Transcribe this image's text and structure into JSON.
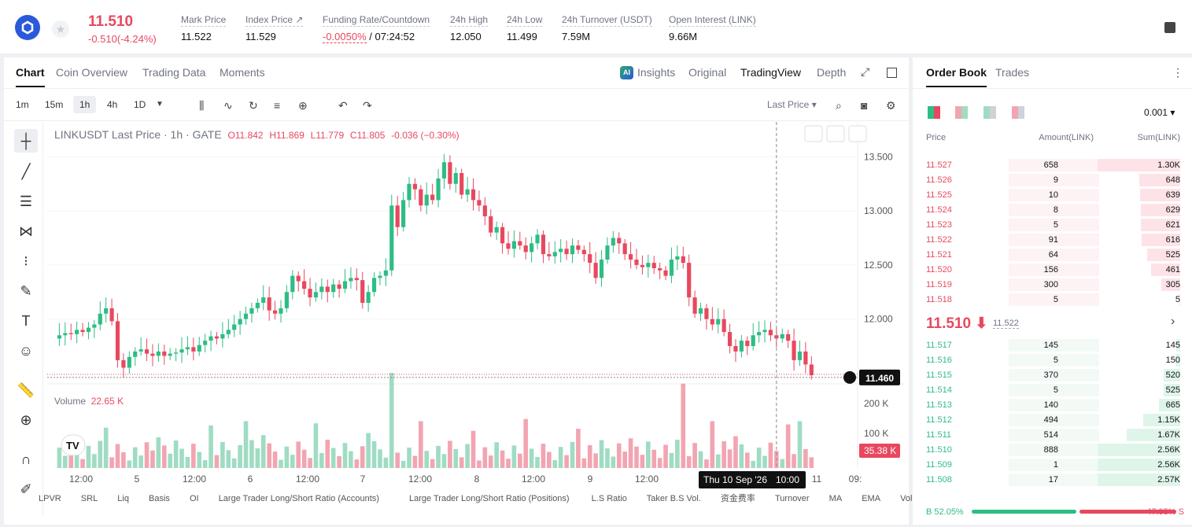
{
  "ticker": {
    "price": "11.510",
    "change": "-0.510(-4.24%)"
  },
  "stats": [
    {
      "label": "Mark Price",
      "value": "11.522"
    },
    {
      "label": "Index Price ↗",
      "value": "11.529"
    },
    {
      "label": "Funding Rate/Countdown",
      "value_red": "-0.0050%",
      "value": " / 07:24:52"
    },
    {
      "label": "24h High",
      "value": "12.050"
    },
    {
      "label": "24h Low",
      "value": "11.499"
    },
    {
      "label": "24h Turnover (USDT)",
      "value": "7.59M"
    },
    {
      "label": "Open Interest (LINK)",
      "value": "9.66M"
    }
  ],
  "chart_tabs": [
    "Chart",
    "Coin Overview",
    "Trading Data",
    "Moments"
  ],
  "view_tabs": [
    "Insights",
    "Original",
    "TradingView",
    "Depth"
  ],
  "ai_badge": "AI",
  "intervals": [
    "1m",
    "15m",
    "1h",
    "4h",
    "1D"
  ],
  "price_type": "Last Price",
  "legend": {
    "title": "LINKUSDT Last Price · 1h · GATE",
    "o": "O11.842",
    "h": "H11.869",
    "l": "L11.779",
    "c": "C11.805",
    "chg": "-0.036 (−0.30%)"
  },
  "volume_legend": {
    "label": "Volume",
    "value": "22.65 K"
  },
  "bottom_indicators": [
    "LPVR",
    "SRL",
    "Liq",
    "Basis",
    "OI",
    "Large Trader Long/Short Ratio (Accounts)",
    "Large Trader Long/Short Ratio (Positions)",
    "L.S Ratio",
    "Taker B.S Vol.",
    "资金费率",
    "Turnover",
    "MA",
    "EMA",
    "Volu"
  ],
  "orderbook": {
    "tabs": [
      "Order Book",
      "Trades"
    ],
    "precision": "0.001",
    "headers": [
      "Price",
      "Amount(LINK)",
      "Sum(LINK)"
    ],
    "asks": [
      {
        "price": "11.527",
        "amount": "658",
        "sum": "1.30K",
        "depth": 1.0
      },
      {
        "price": "11.526",
        "amount": "9",
        "sum": "648",
        "depth": 0.5
      },
      {
        "price": "11.525",
        "amount": "10",
        "sum": "639",
        "depth": 0.49
      },
      {
        "price": "11.524",
        "amount": "8",
        "sum": "629",
        "depth": 0.48
      },
      {
        "price": "11.523",
        "amount": "5",
        "sum": "621",
        "depth": 0.48
      },
      {
        "price": "11.522",
        "amount": "91",
        "sum": "616",
        "depth": 0.47
      },
      {
        "price": "11.521",
        "amount": "64",
        "sum": "525",
        "depth": 0.4
      },
      {
        "price": "11.520",
        "amount": "156",
        "sum": "461",
        "depth": 0.35
      },
      {
        "price": "11.519",
        "amount": "300",
        "sum": "305",
        "depth": 0.23
      },
      {
        "price": "11.518",
        "amount": "5",
        "sum": "5",
        "depth": 0.01
      }
    ],
    "last_price": "11.510 ⬇",
    "mark_price": "11.522",
    "bids": [
      {
        "price": "11.517",
        "amount": "145",
        "sum": "145",
        "depth": 0.05
      },
      {
        "price": "11.516",
        "amount": "5",
        "sum": "150",
        "depth": 0.06
      },
      {
        "price": "11.515",
        "amount": "370",
        "sum": "520",
        "depth": 0.2
      },
      {
        "price": "11.514",
        "amount": "5",
        "sum": "525",
        "depth": 0.2
      },
      {
        "price": "11.513",
        "amount": "140",
        "sum": "665",
        "depth": 0.26
      },
      {
        "price": "11.512",
        "amount": "494",
        "sum": "1.15K",
        "depth": 0.45
      },
      {
        "price": "11.511",
        "amount": "514",
        "sum": "1.67K",
        "depth": 0.65
      },
      {
        "price": "11.510",
        "amount": "888",
        "sum": "2.56K",
        "depth": 1.0
      },
      {
        "price": "11.509",
        "amount": "1",
        "sum": "2.56K",
        "depth": 1.0
      },
      {
        "price": "11.508",
        "amount": "17",
        "sum": "2.57K",
        "depth": 1.0
      }
    ],
    "buy_pct": "52.05%",
    "sell_pct": "47.95%",
    "buy_label": "B",
    "sell_label": "S",
    "buy_fraction": 0.5205
  },
  "chart_data": {
    "type": "candlestick",
    "y_ticks": [
      "13.500",
      "13.000",
      "12.500",
      "12.000"
    ],
    "vol_ticks": [
      "200 K",
      "100 K"
    ],
    "current_price_label": "11.460",
    "current_volume_label": "35.38 K",
    "x_ticks": [
      "12:00",
      "5",
      "12:00",
      "6",
      "12:00",
      "7",
      "12:00",
      "8",
      "12:00",
      "9",
      "12:00",
      "11",
      "09:"
    ],
    "crosshair_date": "Thu 10 Sep '26",
    "crosshair_time": "10:00",
    "ylim": [
      11.35,
      13.75
    ],
    "colors": {
      "up": "#2ebd85",
      "down": "#e8485f",
      "up_vol": "#9fdcc3",
      "down_vol": "#f2a5b1"
    }
  }
}
